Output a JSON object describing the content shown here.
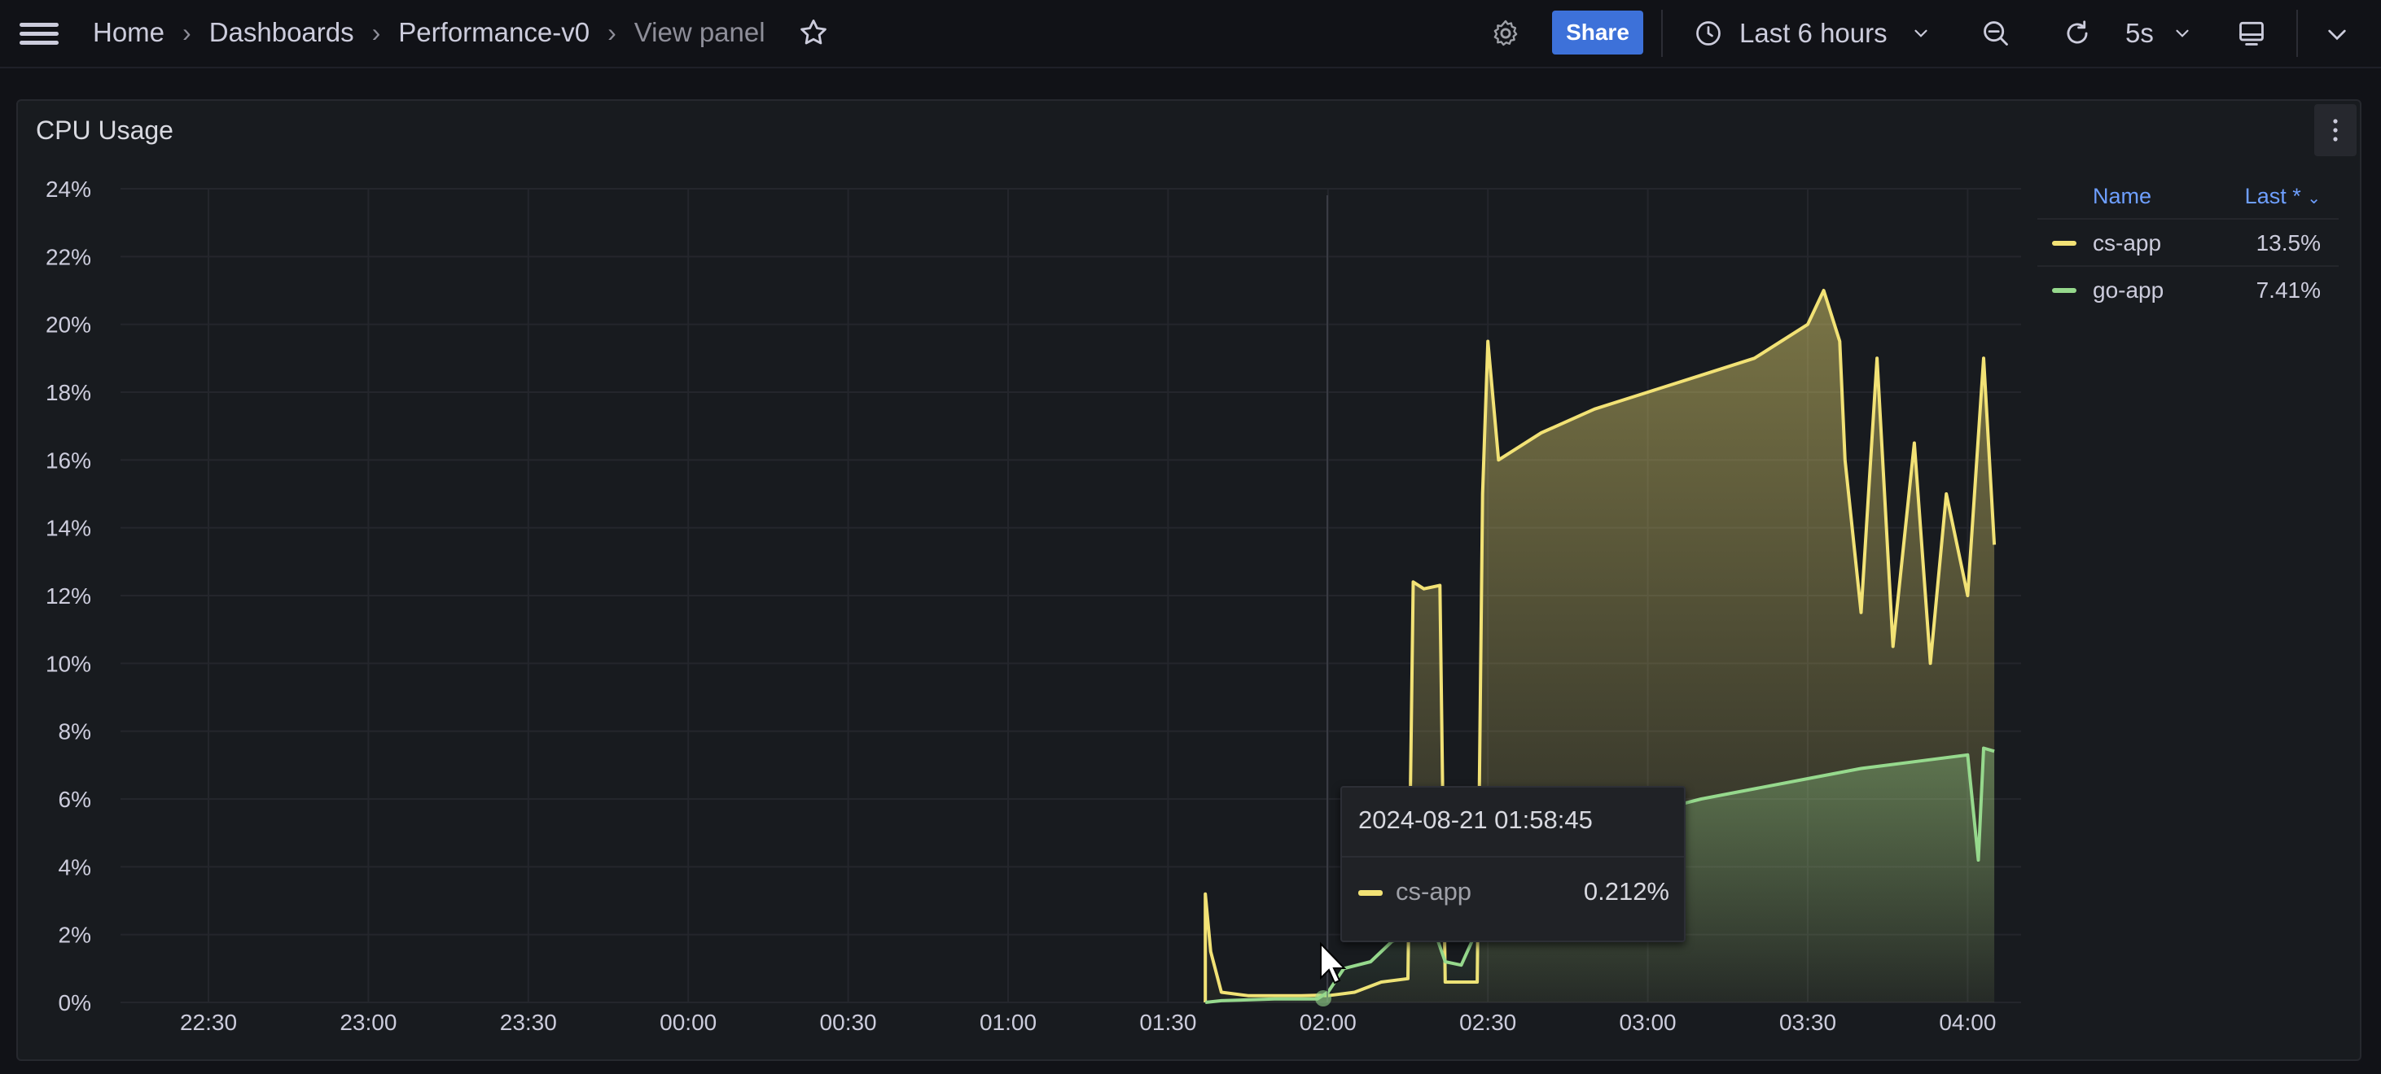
{
  "header": {
    "breadcrumbs": [
      "Home",
      "Dashboards",
      "Performance-v0",
      "View panel"
    ],
    "share_label": "Share",
    "time_range": "Last 6 hours",
    "refresh_interval": "5s"
  },
  "panel": {
    "title": "CPU Usage"
  },
  "legend": {
    "col_name": "Name",
    "col_last": "Last *",
    "rows": [
      {
        "name": "cs-app",
        "value": "13.5%",
        "color": "#f2e275"
      },
      {
        "name": "go-app",
        "value": "7.41%",
        "color": "#96d98d"
      }
    ]
  },
  "tooltip": {
    "timestamp": "2024-08-21 01:58:45",
    "series": "cs-app",
    "value": "0.212%",
    "color": "#f2e275"
  },
  "colors": {
    "accent": "#3d71d9",
    "cs_app": "#f2e275",
    "go_app": "#96d98d",
    "background": "#111217",
    "panel": "#181b1f"
  },
  "chart_data": {
    "type": "area",
    "title": "CPU Usage",
    "x_ticks": [
      "22:30",
      "23:00",
      "23:30",
      "00:00",
      "00:30",
      "01:00",
      "01:30",
      "02:00",
      "02:30",
      "03:00",
      "03:30",
      "04:00"
    ],
    "y_ticks": [
      "0%",
      "2%",
      "4%",
      "6%",
      "8%",
      "10%",
      "12%",
      "14%",
      "16%",
      "18%",
      "20%",
      "22%",
      "24%"
    ],
    "ylim": [
      0,
      24
    ],
    "grid": true,
    "legend_placement": "right",
    "series": [
      {
        "name": "cs-app",
        "color": "#f2e275",
        "points": [
          [
            "01:37",
            0
          ],
          [
            "01:37",
            3.2
          ],
          [
            "01:38",
            1.5
          ],
          [
            "01:40",
            0.3
          ],
          [
            "01:45",
            0.2
          ],
          [
            "01:50",
            0.2
          ],
          [
            "01:55",
            0.2
          ],
          [
            "01:58",
            0.21
          ],
          [
            "02:00",
            0.2
          ],
          [
            "02:05",
            0.3
          ],
          [
            "02:10",
            0.6
          ],
          [
            "02:15",
            0.7
          ],
          [
            "02:16",
            12.4
          ],
          [
            "02:18",
            12.2
          ],
          [
            "02:21",
            12.3
          ],
          [
            "02:22",
            0.6
          ],
          [
            "02:25",
            0.6
          ],
          [
            "02:28",
            0.6
          ],
          [
            "02:29",
            15.0
          ],
          [
            "02:30",
            19.5
          ],
          [
            "02:32",
            16.0
          ],
          [
            "02:40",
            16.8
          ],
          [
            "02:50",
            17.5
          ],
          [
            "03:00",
            18.0
          ],
          [
            "03:10",
            18.5
          ],
          [
            "03:20",
            19.0
          ],
          [
            "03:25",
            19.5
          ],
          [
            "03:30",
            20.0
          ],
          [
            "03:33",
            21.0
          ],
          [
            "03:36",
            19.5
          ],
          [
            "03:37",
            16.0
          ],
          [
            "03:40",
            11.5
          ],
          [
            "03:43",
            19.0
          ],
          [
            "03:46",
            10.5
          ],
          [
            "03:50",
            16.5
          ],
          [
            "03:53",
            10.0
          ],
          [
            "03:56",
            15.0
          ],
          [
            "04:00",
            12.0
          ],
          [
            "04:03",
            19.0
          ],
          [
            "04:05",
            13.5
          ]
        ]
      },
      {
        "name": "go-app",
        "color": "#96d98d",
        "points": [
          [
            "01:37",
            0
          ],
          [
            "01:40",
            0.05
          ],
          [
            "01:50",
            0.1
          ],
          [
            "01:58",
            0.1
          ],
          [
            "02:00",
            0.3
          ],
          [
            "02:03",
            1.0
          ],
          [
            "02:08",
            1.2
          ],
          [
            "02:12",
            1.8
          ],
          [
            "02:16",
            2.0
          ],
          [
            "02:20",
            2.1
          ],
          [
            "02:22",
            1.2
          ],
          [
            "02:25",
            1.1
          ],
          [
            "02:29",
            2.5
          ],
          [
            "02:30",
            4.5
          ],
          [
            "02:40",
            5.0
          ],
          [
            "02:50",
            5.3
          ],
          [
            "03:00",
            5.6
          ],
          [
            "03:10",
            6.0
          ],
          [
            "03:20",
            6.3
          ],
          [
            "03:30",
            6.6
          ],
          [
            "03:40",
            6.9
          ],
          [
            "03:50",
            7.1
          ],
          [
            "04:00",
            7.3
          ],
          [
            "04:02",
            4.2
          ],
          [
            "04:03",
            7.5
          ],
          [
            "04:05",
            7.41
          ]
        ]
      }
    ],
    "annotations": []
  }
}
